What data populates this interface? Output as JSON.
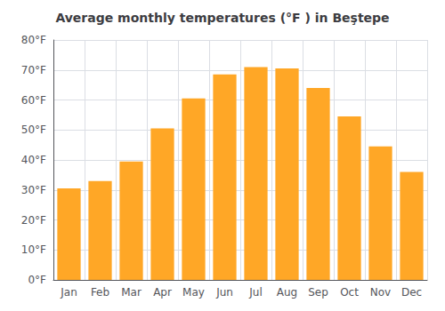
{
  "chart_data": {
    "type": "bar",
    "title": "Average monthly temperatures (°F ) in Beştepe",
    "categories": [
      "Jan",
      "Feb",
      "Mar",
      "Apr",
      "May",
      "Jun",
      "Jul",
      "Aug",
      "Sep",
      "Oct",
      "Nov",
      "Dec"
    ],
    "values": [
      30.5,
      33.0,
      39.5,
      50.5,
      60.5,
      68.5,
      71.0,
      70.5,
      64.0,
      54.5,
      44.5,
      36.0
    ],
    "color": "#FFA726",
    "ylim": [
      0,
      80
    ],
    "yticks": [
      {
        "value": 0,
        "label": "0°F"
      },
      {
        "value": 10,
        "label": "10°F"
      },
      {
        "value": 20,
        "label": "20°F"
      },
      {
        "value": 30,
        "label": "30°F"
      },
      {
        "value": 40,
        "label": "40°F"
      },
      {
        "value": 50,
        "label": "50°F"
      },
      {
        "value": 60,
        "label": "60°F"
      },
      {
        "value": 70,
        "label": "70°F"
      },
      {
        "value": 80,
        "label": "80°F"
      }
    ],
    "grid": true
  }
}
